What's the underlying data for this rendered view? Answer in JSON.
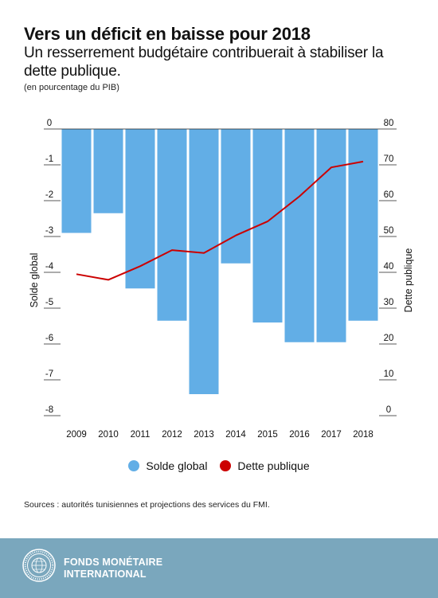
{
  "header": {
    "title": "Vers un déficit en baisse pour 2018",
    "subtitle": "Un resserrement budgétaire contribuerait à stabiliser la dette publique.",
    "units": "(en pourcentage du PIB)"
  },
  "chart_data": {
    "type": "bar",
    "categories": [
      "2009",
      "2010",
      "2011",
      "2012",
      "2013",
      "2014",
      "2015",
      "2016",
      "2017",
      "2018"
    ],
    "series": [
      {
        "name": "Solde global",
        "type": "bar",
        "axis": "left",
        "color": "#62aee6",
        "values": [
          -2.9,
          -2.35,
          -4.45,
          -5.35,
          -7.4,
          -3.75,
          -5.4,
          -5.95,
          -5.95,
          -5.35
        ]
      },
      {
        "name": "Dette publique",
        "type": "line",
        "axis": "right",
        "color": "#cc0000",
        "values": [
          39.5,
          37.9,
          41.7,
          46.2,
          45.4,
          50.3,
          54.2,
          61.2,
          69.3,
          70.9
        ]
      }
    ],
    "ylabel_left": "Solde global",
    "ylabel_right": "Dette publique",
    "ylim_left": [
      -8,
      0
    ],
    "ylim_right": [
      0,
      80
    ],
    "yticks_left": [
      "0",
      "-1",
      "-2",
      "-3",
      "-4",
      "-5",
      "-6",
      "-7",
      "-8"
    ],
    "yticks_right": [
      "80",
      "70",
      "60",
      "50",
      "40",
      "30",
      "20",
      "10",
      "0"
    ],
    "grid": false,
    "legend_position": "bottom"
  },
  "legend": {
    "items": [
      {
        "label": "Solde global",
        "color": "#62aee6"
      },
      {
        "label": "Dette publique",
        "color": "#cc0000"
      }
    ]
  },
  "source": "Sources : autorités tunisiennes et projections des services du FMI.",
  "footer": {
    "org_line1": "FONDS MONÉTAIRE",
    "org_line2": "INTERNATIONAL",
    "seal_icon": "imf-seal-icon",
    "background": "#7aa7bd"
  }
}
